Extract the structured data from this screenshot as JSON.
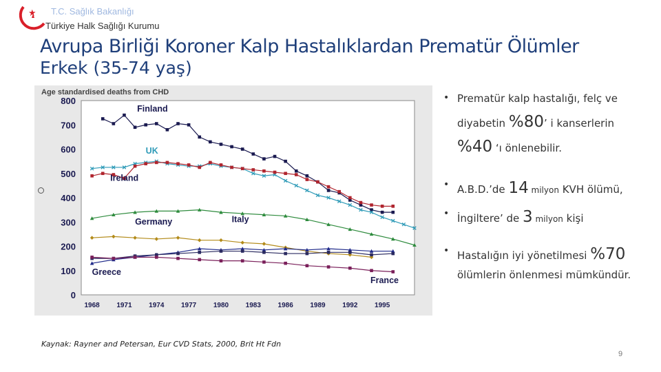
{
  "header": {
    "org_line1": "T.C. Sağlık Bakanlığı",
    "org_line2": "Türkiye Halk Sağlığı Kurumu"
  },
  "slide": {
    "title": "Avrupa Birliği Koroner Kalp Hastalıklardan Prematür Ölümler",
    "subtitle": "Erkek (35-74 yaş)",
    "source": "Kaynak: Rayner and Petersan, Eur CVD Stats, 2000, Brit Ht Fdn",
    "page_number": "9"
  },
  "bullets": [
    {
      "parts": [
        "Prematür kalp hastalığı, felç ve"
      ]
    },
    {
      "parts": [
        "diyabetin ",
        "%80",
        "’ i kanserlerin"
      ]
    },
    {
      "parts": [
        "%40",
        " ‘ı önlenebilir."
      ]
    },
    {
      "parts": [
        "A.B.D.’de ",
        "14",
        " milyon",
        " KVH ölümü,"
      ]
    },
    {
      "parts": [
        "İngiltere’ de ",
        "3",
        " milyon",
        " kişi"
      ]
    },
    {
      "parts": [
        "Hastalığın iyi yönetilmesi ",
        "%70"
      ]
    },
    {
      "parts": [
        "ölümlerin önlenmesi mümkündür."
      ]
    }
  ],
  "colors": {
    "title": "#1f3f7a",
    "logo_red": "#d9202a",
    "logo_blue": "#7fa6d8",
    "plot_bg": "#ffffff",
    "outer_bg": "#e8e8e8"
  },
  "chart_data": {
    "type": "line",
    "title": "Age standardised deaths from CHD",
    "xlabel": "",
    "ylabel": "",
    "x_ticks": [
      1968,
      1971,
      1974,
      1977,
      1980,
      1983,
      1986,
      1989,
      1992,
      1995
    ],
    "y_ticks": [
      0,
      100,
      200,
      300,
      400,
      500,
      600,
      700,
      800
    ],
    "xlim": [
      1967,
      1998
    ],
    "ylim": [
      0,
      800
    ],
    "grid": false,
    "series": [
      {
        "name": "Finland",
        "color": "#1a1a50",
        "marker": "square",
        "x": [
          1969,
          1970,
          1971,
          1972,
          1973,
          1974,
          1975,
          1976,
          1977,
          1978,
          1979,
          1980,
          1981,
          1982,
          1983,
          1984,
          1985,
          1986,
          1987,
          1988,
          1989,
          1990,
          1991,
          1992,
          1993,
          1994,
          1995,
          1996
        ],
        "y": [
          725,
          705,
          740,
          690,
          700,
          705,
          680,
          705,
          700,
          650,
          630,
          620,
          610,
          600,
          580,
          560,
          570,
          550,
          510,
          490,
          465,
          430,
          420,
          390,
          370,
          350,
          340,
          340
        ]
      },
      {
        "name": "UK",
        "color": "#2f9bb8",
        "marker": "x",
        "x": [
          1968,
          1969,
          1970,
          1971,
          1972,
          1973,
          1974,
          1975,
          1976,
          1977,
          1978,
          1979,
          1980,
          1981,
          1982,
          1983,
          1984,
          1985,
          1986,
          1987,
          1988,
          1989,
          1990,
          1991,
          1992,
          1993,
          1994,
          1995,
          1996,
          1997,
          1998
        ],
        "y": [
          520,
          525,
          525,
          525,
          540,
          545,
          550,
          540,
          535,
          530,
          530,
          540,
          530,
          525,
          520,
          500,
          490,
          495,
          470,
          450,
          430,
          410,
          400,
          385,
          370,
          350,
          340,
          320,
          305,
          290,
          275
        ]
      },
      {
        "name": "Ireland",
        "color": "#b0252e",
        "marker": "square",
        "x": [
          1968,
          1969,
          1970,
          1971,
          1972,
          1973,
          1974,
          1975,
          1976,
          1977,
          1978,
          1979,
          1980,
          1981,
          1982,
          1983,
          1984,
          1985,
          1986,
          1987,
          1988,
          1989,
          1990,
          1991,
          1992,
          1993,
          1994,
          1995,
          1996
        ],
        "y": [
          490,
          500,
          495,
          480,
          530,
          540,
          545,
          545,
          540,
          535,
          525,
          545,
          535,
          525,
          520,
          515,
          510,
          505,
          500,
          495,
          475,
          465,
          445,
          425,
          400,
          380,
          370,
          365,
          365
        ]
      },
      {
        "name": "Germany",
        "color": "#2e8b3d",
        "marker": "triangle",
        "x": [
          1968,
          1970,
          1972,
          1974,
          1976,
          1978,
          1980,
          1982,
          1984,
          1986,
          1988,
          1990,
          1992,
          1994,
          1996,
          1998
        ],
        "y": [
          315,
          330,
          340,
          345,
          345,
          350,
          340,
          335,
          330,
          325,
          310,
          290,
          270,
          250,
          230,
          205
        ]
      },
      {
        "name": "Italy",
        "color": "#b38b1a",
        "marker": "diamond",
        "x": [
          1968,
          1970,
          1972,
          1974,
          1976,
          1978,
          1980,
          1982,
          1984,
          1986,
          1988,
          1990,
          1992,
          1994
        ],
        "y": [
          235,
          240,
          235,
          230,
          235,
          225,
          225,
          215,
          210,
          195,
          180,
          170,
          165,
          155
        ]
      },
      {
        "name": "",
        "color": "#1f2a8a",
        "marker": "triangle",
        "x": [
          1968,
          1970,
          1972,
          1974,
          1976,
          1978,
          1980,
          1982,
          1984,
          1986,
          1988,
          1990,
          1992,
          1994,
          1996
        ],
        "y": [
          130,
          145,
          155,
          165,
          175,
          190,
          185,
          190,
          185,
          190,
          185,
          190,
          185,
          180,
          180
        ]
      },
      {
        "name": "Greece",
        "color": "#2a2a60",
        "marker": "square",
        "x": [
          1968,
          1970,
          1972,
          1974,
          1976,
          1978,
          1980,
          1982,
          1984,
          1986,
          1988,
          1990,
          1992,
          1994,
          1996
        ],
        "y": [
          150,
          150,
          160,
          165,
          170,
          175,
          180,
          180,
          175,
          170,
          170,
          175,
          175,
          165,
          170
        ]
      },
      {
        "name": "France",
        "color": "#7a1f5a",
        "marker": "square",
        "x": [
          1968,
          1970,
          1972,
          1974,
          1976,
          1978,
          1980,
          1982,
          1984,
          1986,
          1988,
          1990,
          1992,
          1994,
          1996
        ],
        "y": [
          155,
          150,
          155,
          155,
          150,
          145,
          140,
          140,
          135,
          130,
          120,
          115,
          110,
          100,
          95
        ]
      }
    ]
  }
}
